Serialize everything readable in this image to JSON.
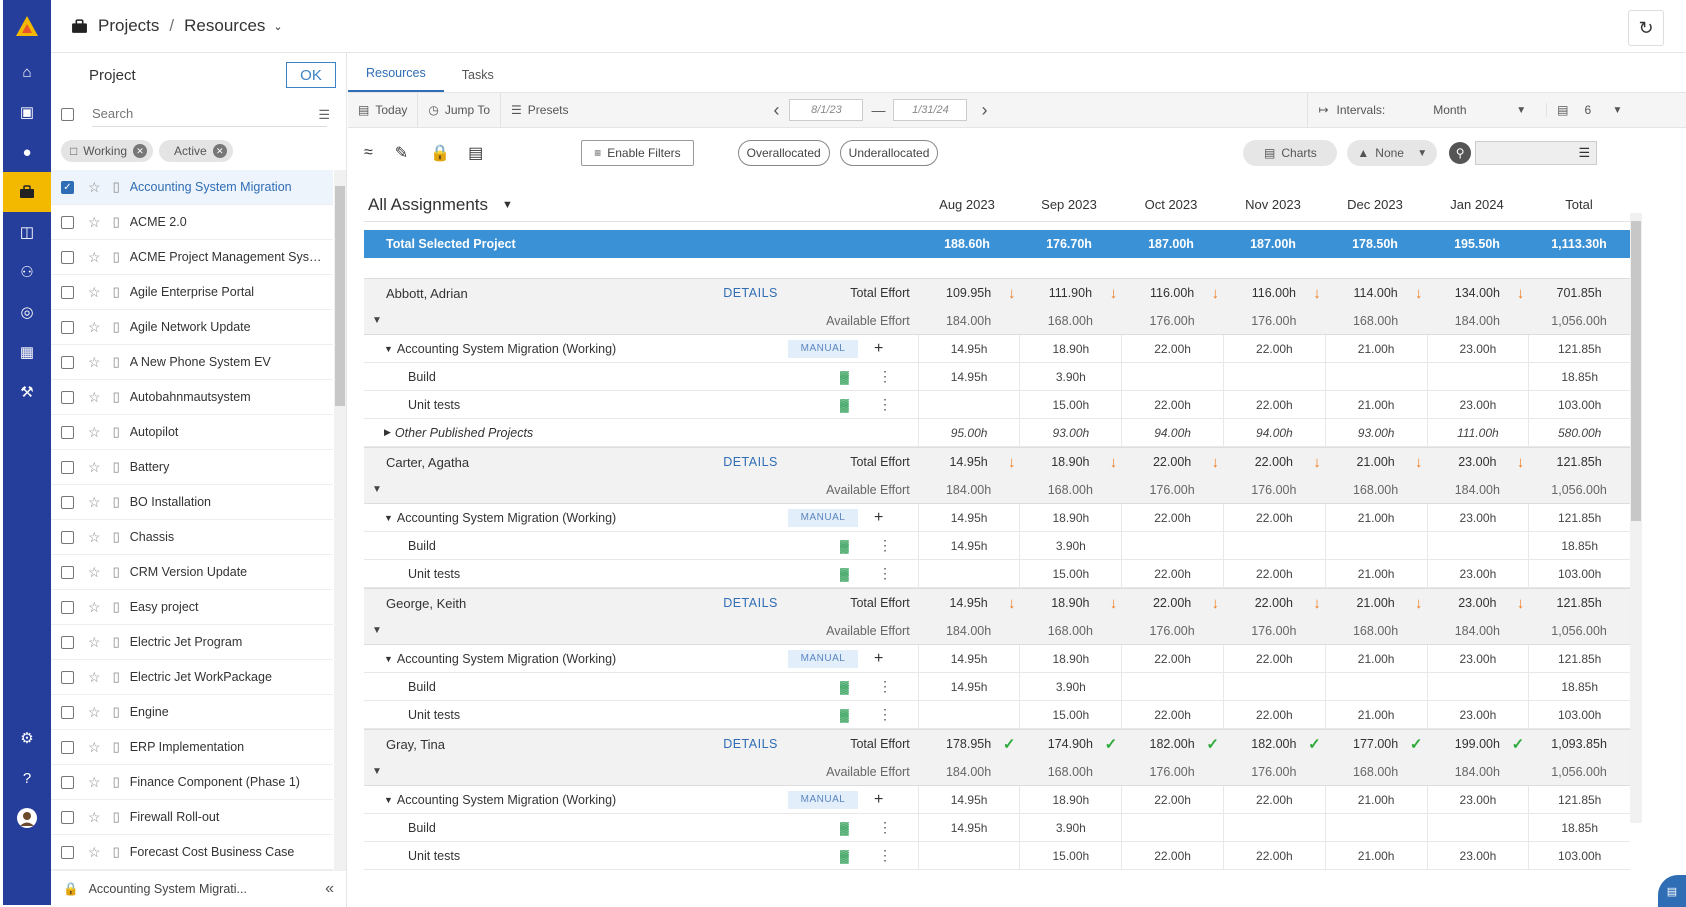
{
  "app": {
    "accent": "#253e9c",
    "active_nav": "#f3b800"
  },
  "header": {
    "crumb_root": "Projects",
    "crumb_sep": "/",
    "crumb_current": "Resources",
    "crumb_icon": "briefcase-icon",
    "refresh_icon": "refresh-icon"
  },
  "nav": [
    "home-icon",
    "monitor-icon",
    "lightbulb-icon",
    "briefcase-icon",
    "folder-icon",
    "team-icon",
    "target-icon",
    "report-icon",
    "tools-icon"
  ],
  "nav_bottom": [
    "gear-icon",
    "help-icon",
    "user-avatar"
  ],
  "project_panel": {
    "title": "Project",
    "ok_label": "OK",
    "search_placeholder": "Search",
    "chips": [
      "Working",
      "Active"
    ],
    "items": [
      "Accounting System Migration",
      "ACME 2.0",
      "ACME Project Management System",
      "Agile Enterprise Portal",
      "Agile Network Update",
      "A New Phone System EV",
      "Autobahnmautsystem",
      "Autopilot",
      "Battery",
      "BO Installation",
      "Chassis",
      "CRM Version Update",
      "Easy project",
      "Electric Jet Program",
      "Electric Jet WorkPackage",
      "Engine",
      "ERP Implementation",
      "Finance Component (Phase 1)",
      "Firewall Roll-out",
      "Forecast Cost Business Case"
    ],
    "selected": "Accounting System Migration",
    "footer": "Accounting System Migrati..."
  },
  "tabs": [
    "Resources",
    "Tasks"
  ],
  "toolbar": {
    "today": "Today",
    "jump_to": "Jump To",
    "presets": "Presets",
    "date_from": "8/1/23",
    "date_to": "1/31/24",
    "intervals_label": "Intervals:",
    "interval_value": "Month",
    "count_value": "6"
  },
  "filters": {
    "enable_filters": "Enable Filters",
    "overallocated": "Overallocated",
    "underallocated": "Underallocated",
    "charts": "Charts",
    "none": "None"
  },
  "grid": {
    "view_label": "All Assignments",
    "columns": [
      "Aug 2023",
      "Sep 2023",
      "Oct 2023",
      "Nov 2023",
      "Dec 2023",
      "Jan 2024",
      "Total"
    ],
    "total_label": "Total Selected Project",
    "total_values": [
      "188.60h",
      "176.70h",
      "187.00h",
      "187.00h",
      "178.50h",
      "195.50h",
      "1,113.30h"
    ],
    "details_label": "DETAILS",
    "total_effort_label": "Total Effort",
    "available_effort_label": "Available Effort",
    "manual_label": "MANUAL",
    "resources": [
      {
        "name": "Abbott, Adrian",
        "total": [
          "109.95h",
          "111.90h",
          "116.00h",
          "116.00h",
          "114.00h",
          "134.00h",
          "701.85h"
        ],
        "status": "over",
        "available": [
          "184.00h",
          "168.00h",
          "176.00h",
          "176.00h",
          "168.00h",
          "184.00h",
          "1,056.00h"
        ],
        "project": "Accounting System Migration (Working)",
        "project_vals": [
          "14.95h",
          "18.90h",
          "22.00h",
          "22.00h",
          "21.00h",
          "23.00h",
          "121.85h"
        ],
        "tasks": [
          {
            "name": "Build",
            "vals": [
              "14.95h",
              "3.90h",
              "",
              "",
              "",
              "",
              "18.85h"
            ]
          },
          {
            "name": "Unit tests",
            "vals": [
              "",
              "15.00h",
              "22.00h",
              "22.00h",
              "21.00h",
              "23.00h",
              "103.00h"
            ]
          }
        ],
        "other": {
          "name": "Other Published Projects",
          "vals": [
            "95.00h",
            "93.00h",
            "94.00h",
            "94.00h",
            "93.00h",
            "111.00h",
            "580.00h"
          ]
        }
      },
      {
        "name": "Carter, Agatha",
        "total": [
          "14.95h",
          "18.90h",
          "22.00h",
          "22.00h",
          "21.00h",
          "23.00h",
          "121.85h"
        ],
        "status": "over",
        "available": [
          "184.00h",
          "168.00h",
          "176.00h",
          "176.00h",
          "168.00h",
          "184.00h",
          "1,056.00h"
        ],
        "project": "Accounting System Migration (Working)",
        "project_vals": [
          "14.95h",
          "18.90h",
          "22.00h",
          "22.00h",
          "21.00h",
          "23.00h",
          "121.85h"
        ],
        "tasks": [
          {
            "name": "Build",
            "vals": [
              "14.95h",
              "3.90h",
              "",
              "",
              "",
              "",
              "18.85h"
            ]
          },
          {
            "name": "Unit tests",
            "vals": [
              "",
              "15.00h",
              "22.00h",
              "22.00h",
              "21.00h",
              "23.00h",
              "103.00h"
            ]
          }
        ]
      },
      {
        "name": "George, Keith",
        "total": [
          "14.95h",
          "18.90h",
          "22.00h",
          "22.00h",
          "21.00h",
          "23.00h",
          "121.85h"
        ],
        "status": "over",
        "available": [
          "184.00h",
          "168.00h",
          "176.00h",
          "176.00h",
          "168.00h",
          "184.00h",
          "1,056.00h"
        ],
        "project": "Accounting System Migration (Working)",
        "project_vals": [
          "14.95h",
          "18.90h",
          "22.00h",
          "22.00h",
          "21.00h",
          "23.00h",
          "121.85h"
        ],
        "tasks": [
          {
            "name": "Build",
            "vals": [
              "14.95h",
              "3.90h",
              "",
              "",
              "",
              "",
              "18.85h"
            ]
          },
          {
            "name": "Unit tests",
            "vals": [
              "",
              "15.00h",
              "22.00h",
              "22.00h",
              "21.00h",
              "23.00h",
              "103.00h"
            ]
          }
        ]
      },
      {
        "name": "Gray, Tina",
        "total": [
          "178.95h",
          "174.90h",
          "182.00h",
          "182.00h",
          "177.00h",
          "199.00h",
          "1,093.85h"
        ],
        "status": "ok",
        "available": [
          "184.00h",
          "168.00h",
          "176.00h",
          "176.00h",
          "168.00h",
          "184.00h",
          "1,056.00h"
        ],
        "project": "Accounting System Migration (Working)",
        "project_vals": [
          "14.95h",
          "18.90h",
          "22.00h",
          "22.00h",
          "21.00h",
          "23.00h",
          "121.85h"
        ],
        "tasks": [
          {
            "name": "Build",
            "vals": [
              "14.95h",
              "3.90h",
              "",
              "",
              "",
              "",
              "18.85h"
            ]
          },
          {
            "name": "Unit tests",
            "vals": [
              "",
              "15.00h",
              "22.00h",
              "22.00h",
              "21.00h",
              "23.00h",
              "103.00h"
            ]
          }
        ]
      }
    ]
  }
}
